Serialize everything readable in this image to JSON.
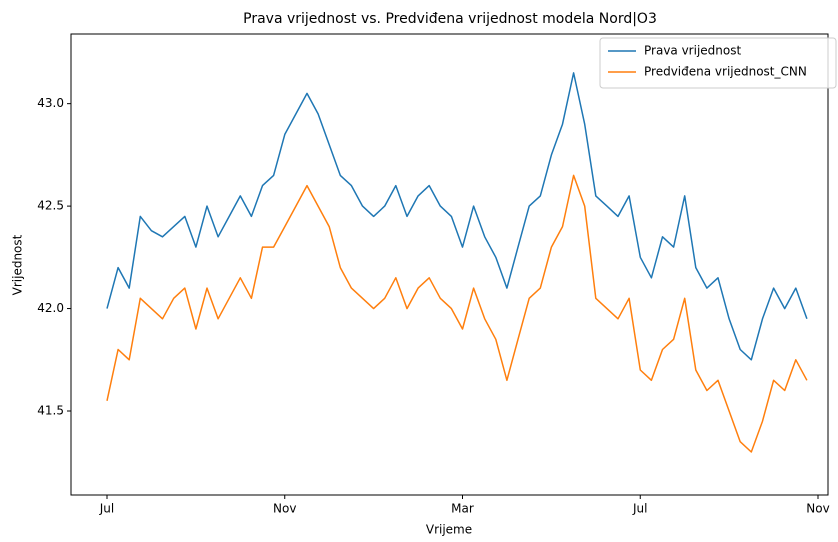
{
  "chart_data": {
    "type": "line",
    "title": "Prava vrijednost vs. Predviđena vrijednost modela Nord|O3",
    "x_label": "Vrijeme",
    "y_label": "Vrijednost",
    "categories": [
      "Jul",
      null,
      null,
      null,
      null,
      null,
      null,
      null,
      null,
      null,
      null,
      null,
      null,
      null,
      null,
      null,
      "Nov",
      null,
      null,
      null,
      null,
      null,
      null,
      null,
      null,
      null,
      null,
      null,
      null,
      null,
      null,
      null,
      "Mar",
      null,
      null,
      null,
      null,
      null,
      null,
      null,
      null,
      null,
      null,
      null,
      null,
      null,
      null,
      null,
      "Jul",
      null,
      null,
      null,
      null,
      null,
      null,
      null,
      null,
      null,
      null,
      null,
      null,
      null,
      null,
      null,
      "Nov"
    ],
    "series": [
      {
        "name": "Prava vrijednost",
        "color": "#1f77b4",
        "values": [
          42.0,
          42.2,
          42.1,
          42.45,
          42.38,
          42.35,
          42.4,
          42.45,
          42.3,
          42.5,
          42.35,
          42.45,
          42.55,
          42.45,
          42.6,
          42.65,
          42.85,
          42.95,
          43.05,
          42.95,
          42.8,
          42.65,
          42.6,
          42.5,
          42.45,
          42.5,
          42.6,
          42.45,
          42.55,
          42.6,
          42.5,
          42.45,
          42.3,
          42.5,
          42.35,
          42.25,
          42.1,
          42.3,
          42.5,
          42.55,
          42.75,
          42.9,
          43.15,
          42.9,
          42.55,
          42.5,
          42.45,
          42.55,
          42.25,
          42.15,
          42.35,
          42.3,
          42.55,
          42.2,
          42.1,
          42.15,
          41.95,
          41.8,
          41.75,
          41.95,
          42.1,
          42.0,
          42.1,
          41.95,
          null
        ]
      },
      {
        "name": "Predviđena vrijednost_CNN",
        "color": "#ff7f0e",
        "values": [
          41.55,
          41.8,
          41.75,
          42.05,
          42.0,
          41.95,
          42.05,
          42.1,
          41.9,
          42.1,
          41.95,
          42.05,
          42.15,
          42.05,
          42.3,
          42.3,
          42.4,
          42.5,
          42.6,
          42.5,
          42.4,
          42.2,
          42.1,
          42.05,
          42.0,
          42.05,
          42.15,
          42.0,
          42.1,
          42.15,
          42.05,
          42.0,
          41.9,
          42.1,
          41.95,
          41.85,
          41.65,
          41.85,
          42.05,
          42.1,
          42.3,
          42.4,
          42.65,
          42.5,
          42.05,
          42.0,
          41.95,
          42.05,
          41.7,
          41.65,
          41.8,
          41.85,
          42.05,
          41.7,
          41.6,
          41.65,
          41.5,
          41.35,
          41.3,
          41.45,
          41.65,
          41.6,
          41.75,
          41.65,
          null
        ]
      }
    ],
    "ylim": [
      41.09,
      43.34
    ],
    "yticks": [
      41.5,
      {
        "value": 42,
        "label": "42.0"
      },
      42.5,
      {
        "value": 43,
        "label": "43.0"
      }
    ],
    "legend": "upper right"
  }
}
